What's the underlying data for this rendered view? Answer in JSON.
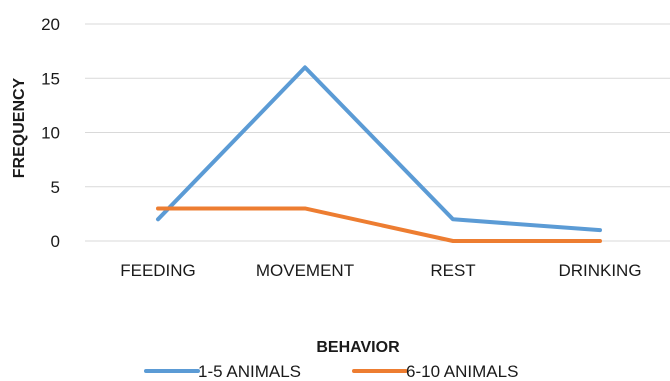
{
  "chart_data": {
    "type": "line",
    "categories": [
      "FEEDING",
      "MOVEMENT",
      "REST",
      "DRINKING"
    ],
    "series": [
      {
        "name": "1-5 ANIMALS",
        "values": [
          2,
          16,
          2,
          1
        ],
        "color": "#5b9bd5"
      },
      {
        "name": "6-10 ANIMALS",
        "values": [
          3,
          3,
          0,
          0
        ],
        "color": "#ed7d31"
      }
    ],
    "xlabel": "BEHAVIOR",
    "ylabel": "FREQUENCY",
    "ylim": [
      0,
      20
    ],
    "yticks": [
      0,
      5,
      10,
      15,
      20
    ],
    "grid": true,
    "legend_position": "bottom"
  }
}
